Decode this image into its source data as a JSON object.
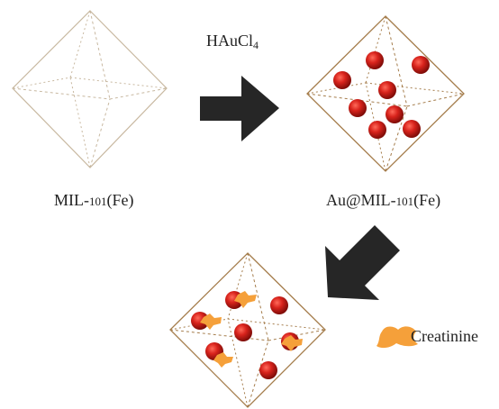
{
  "labels": {
    "reagent": {
      "main": "HAuCl",
      "sub": "4"
    },
    "mof": {
      "pre": "MIL-",
      "num": "101",
      "post": "(Fe)"
    },
    "composite": {
      "pre": "Au@MIL-",
      "num": "101",
      "post": "(Fe)"
    },
    "legend": "Creatinine"
  },
  "colors": {
    "plain_frame": "#c8b8a0",
    "loaded_frame": "#a57d4c",
    "gold_particle": "#d01f1a",
    "creatinine": "#f5a03a",
    "arrow": "#262626"
  },
  "icons": [
    "octahedron",
    "right-arrow",
    "down-left-arrow",
    "gold-nanoparticle",
    "creatinine-blob"
  ]
}
